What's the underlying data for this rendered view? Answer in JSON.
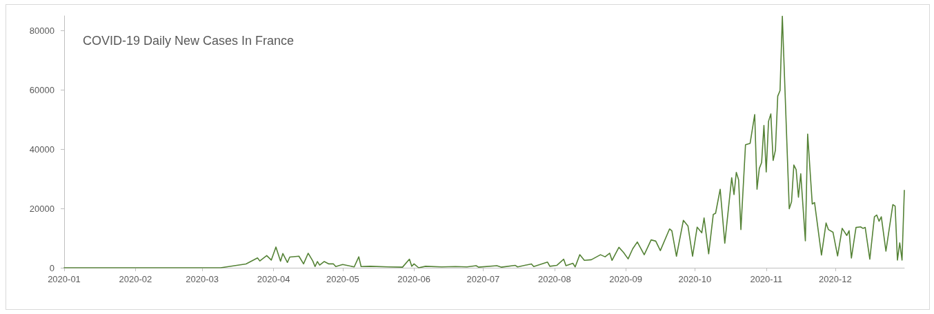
{
  "chart_data": {
    "type": "line",
    "title": "COVID-19 Daily New Cases In France",
    "x": [
      "2020-01-01",
      "2020-03-09",
      "2020-03-20",
      "2020-03-25",
      "2020-03-26",
      "2020-03-29",
      "2020-03-31",
      "2020-04-02",
      "2020-04-04",
      "2020-04-05",
      "2020-04-07",
      "2020-04-08",
      "2020-04-12",
      "2020-04-14",
      "2020-04-16",
      "2020-04-18",
      "2020-04-19",
      "2020-04-20",
      "2020-04-21",
      "2020-04-23",
      "2020-04-25",
      "2020-04-27",
      "2020-04-28",
      "2020-05-01",
      "2020-05-06",
      "2020-05-08",
      "2020-05-09",
      "2020-05-13",
      "2020-05-21",
      "2020-05-27",
      "2020-05-30",
      "2020-05-31",
      "2020-06-01",
      "2020-06-03",
      "2020-06-06",
      "2020-06-13",
      "2020-06-19",
      "2020-06-24",
      "2020-06-28",
      "2020-06-29",
      "2020-07-07",
      "2020-07-09",
      "2020-07-15",
      "2020-07-16",
      "2020-07-22",
      "2020-07-23",
      "2020-07-29",
      "2020-07-30",
      "2020-08-02",
      "2020-08-05",
      "2020-08-06",
      "2020-08-09",
      "2020-08-10",
      "2020-08-12",
      "2020-08-14",
      "2020-08-17",
      "2020-08-21",
      "2020-08-23",
      "2020-08-25",
      "2020-08-26",
      "2020-08-29",
      "2020-08-31",
      "2020-09-02",
      "2020-09-04",
      "2020-09-06",
      "2020-09-09",
      "2020-09-12",
      "2020-09-14",
      "2020-09-16",
      "2020-09-20",
      "2020-09-21",
      "2020-09-23",
      "2020-09-26",
      "2020-09-28",
      "2020-09-30",
      "2020-10-02",
      "2020-10-04",
      "2020-10-05",
      "2020-10-07",
      "2020-10-09",
      "2020-10-10",
      "2020-10-12",
      "2020-10-14",
      "2020-10-17",
      "2020-10-18",
      "2020-10-19",
      "2020-10-20",
      "2020-10-21",
      "2020-10-23",
      "2020-10-25",
      "2020-10-27",
      "2020-10-28",
      "2020-10-29",
      "2020-10-30",
      "2020-10-31",
      "2020-11-01",
      "2020-11-02",
      "2020-11-03",
      "2020-11-04",
      "2020-11-05",
      "2020-11-06",
      "2020-11-07",
      "2020-11-08",
      "2020-11-11",
      "2020-11-12",
      "2020-11-13",
      "2020-11-14",
      "2020-11-15",
      "2020-11-16",
      "2020-11-18",
      "2020-11-19",
      "2020-11-21",
      "2020-11-22",
      "2020-11-25",
      "2020-11-27",
      "2020-11-28",
      "2020-11-30",
      "2020-12-02",
      "2020-12-04",
      "2020-12-06",
      "2020-12-07",
      "2020-12-08",
      "2020-12-10",
      "2020-12-12",
      "2020-12-13",
      "2020-12-14",
      "2020-12-16",
      "2020-12-18",
      "2020-12-19",
      "2020-12-20",
      "2020-12-21",
      "2020-12-23",
      "2020-12-26",
      "2020-12-27",
      "2020-12-28",
      "2020-12-29",
      "2020-12-30",
      "2020-12-31"
    ],
    "values": [
      0,
      0,
      1300,
      3300,
      2300,
      4100,
      2600,
      7000,
      2200,
      4800,
      1800,
      3600,
      3900,
      1300,
      4900,
      2300,
      400,
      2100,
      900,
      2100,
      1300,
      1300,
      400,
      1100,
      300,
      3700,
      400,
      500,
      300,
      200,
      2900,
      500,
      1300,
      0,
      500,
      300,
      400,
      300,
      700,
      200,
      700,
      200,
      800,
      300,
      1300,
      400,
      1900,
      500,
      800,
      2900,
      700,
      1500,
      300,
      4400,
      2500,
      2700,
      4400,
      3700,
      4900,
      2500,
      6900,
      5200,
      3000,
      6400,
      8700,
      4400,
      9400,
      9000,
      5800,
      13100,
      12500,
      3900,
      16000,
      14100,
      3900,
      13700,
      11800,
      16800,
      4700,
      18000,
      18400,
      26500,
      8300,
      30400,
      24700,
      32200,
      29700,
      12900,
      41500,
      42000,
      51700,
      26500,
      33500,
      35500,
      48000,
      32300,
      49400,
      51900,
      36200,
      39700,
      57900,
      59800,
      84900,
      19900,
      22300,
      34700,
      33100,
      23800,
      31700,
      9100,
      45100,
      21500,
      22000,
      4300,
      15100,
      12900,
      12000,
      4000,
      13300,
      10900,
      12500,
      3300,
      13600,
      13800,
      13300,
      13600,
      2900,
      17200,
      17800,
      15700,
      17200,
      5600,
      21300,
      20800,
      2600,
      8400,
      2600,
      26100
    ],
    "color": "#548235",
    "xlim": [
      "2020-01-01",
      "2020-12-31"
    ],
    "xticks": [
      "2020-01",
      "2020-02",
      "2020-03",
      "2020-04",
      "2020-05",
      "2020-06",
      "2020-07",
      "2020-08",
      "2020-09",
      "2020-10",
      "2020-11",
      "2020-12"
    ],
    "ylim": [
      0,
      85000
    ],
    "yticks": [
      0,
      20000,
      40000,
      60000,
      80000
    ],
    "marker": "none",
    "line_style": "solid"
  }
}
